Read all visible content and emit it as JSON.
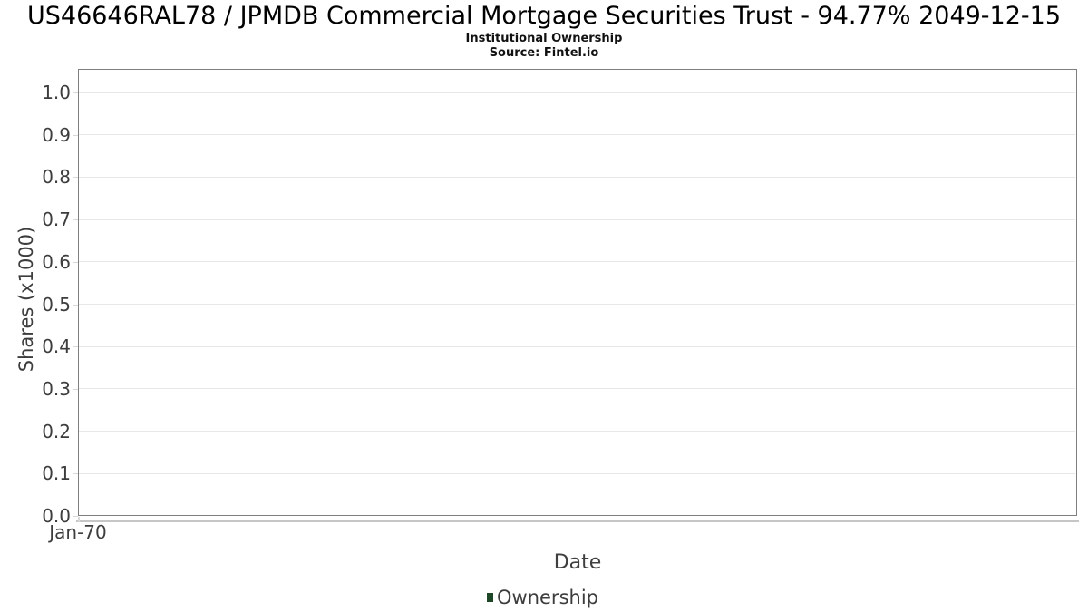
{
  "chart_data": {
    "type": "bar",
    "title": "US46646RAL78 / JPMDB Commercial Mortgage Securities Trust - 94.77% 2049-12-15",
    "subtitle": "Institutional Ownership",
    "source": "Source: Fintel.io",
    "xlabel": "Date",
    "ylabel": "Shares (x1000)",
    "x_tick_labels": [
      "Jan-70"
    ],
    "y_ticks": [
      0.0,
      0.1,
      0.2,
      0.3,
      0.4,
      0.5,
      0.6,
      0.7,
      0.8,
      0.9,
      1.0
    ],
    "y_tick_labels": [
      "0.0",
      "0.1",
      "0.2",
      "0.3",
      "0.4",
      "0.5",
      "0.6",
      "0.7",
      "0.8",
      "0.9",
      "1.0"
    ],
    "ylim": [
      0,
      1.05
    ],
    "grid": true,
    "legend_position": "bottom",
    "series": [
      {
        "name": "Ownership",
        "color": "#1e4727",
        "x": [],
        "values": []
      }
    ]
  },
  "colors": {
    "plot_border": "#7e7e7e",
    "gridline": "#e7e7e7",
    "tick": "#d8d8d8",
    "axis_text": "#3d3d3d",
    "title_text": "#000000",
    "series_green": "#1e4727"
  }
}
